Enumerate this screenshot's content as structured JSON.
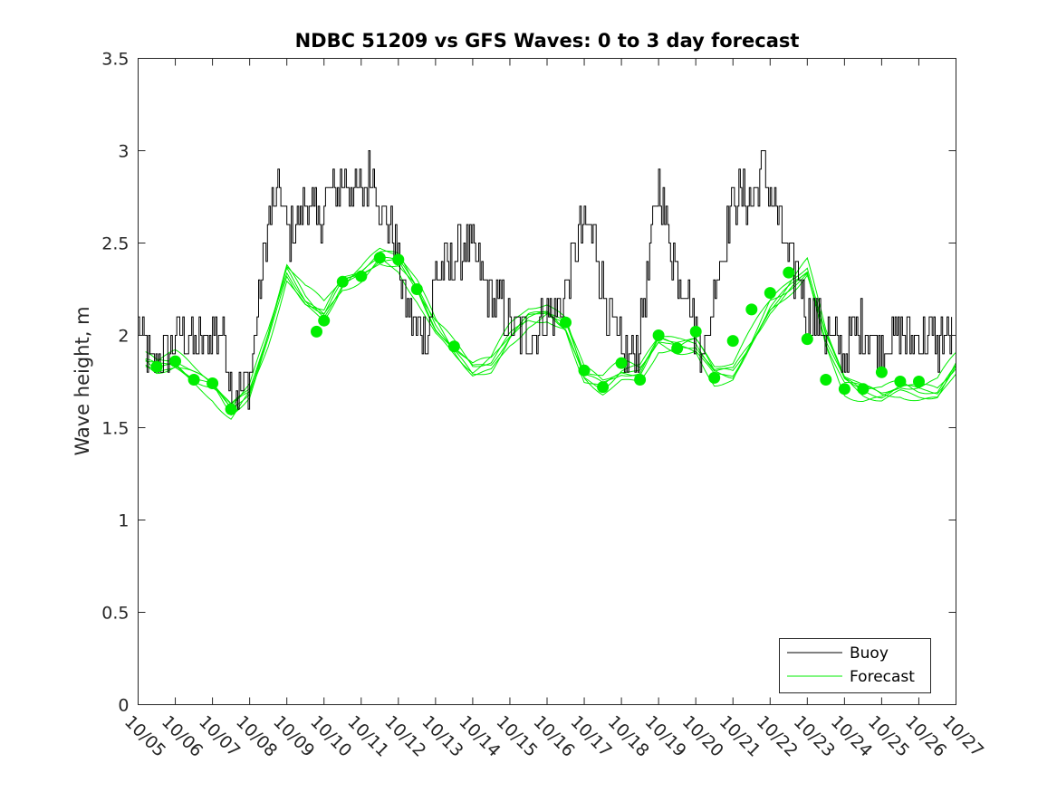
{
  "chart_data": {
    "type": "line",
    "title": "NDBC 51209 vs GFS Waves: 0 to 3 day forecast",
    "ylabel": "Wave height, m",
    "xlabel": "",
    "ylim": [
      0,
      3.5
    ],
    "xlim": [
      0,
      22
    ],
    "yticks": [
      0,
      0.5,
      1,
      1.5,
      2,
      2.5,
      3,
      3.5
    ],
    "ytick_labels": [
      "0",
      "0.5",
      "1",
      "1.5",
      "2",
      "2.5",
      "3",
      "3.5"
    ],
    "xtick_labels": [
      "10/05",
      "10/06",
      "10/07",
      "10/08",
      "10/09",
      "10/10",
      "10/11",
      "10/12",
      "10/13",
      "10/14",
      "10/15",
      "10/16",
      "10/17",
      "10/18",
      "10/19",
      "10/20",
      "10/21",
      "10/22",
      "10/23",
      "10/24",
      "10/25",
      "10/26",
      "10/27"
    ],
    "legend": {
      "placement": "bottom-right",
      "entries": [
        "Buoy",
        "Forecast"
      ]
    },
    "colors": {
      "buoy": "#000000",
      "forecast": "#00ee00"
    },
    "buoy_envelope": {
      "x": [
        0.0,
        0.3,
        0.5,
        0.8,
        1.0,
        1.3,
        1.5,
        1.8,
        2.0,
        2.3,
        2.5,
        2.8,
        3.0,
        3.3,
        3.5,
        3.8,
        4.0,
        4.3,
        4.5,
        4.8,
        5.0,
        5.3,
        5.5,
        5.8,
        6.0,
        6.3,
        6.5,
        6.8,
        7.0,
        7.2,
        7.5,
        7.8,
        8.0,
        8.3,
        8.5,
        8.8,
        9.0,
        9.3,
        9.5,
        9.8,
        10.0,
        10.3,
        10.5,
        10.8,
        11.0,
        11.3,
        11.5,
        11.8,
        12.0,
        12.3,
        12.5,
        12.8,
        13.0,
        13.3,
        13.5,
        13.8,
        14.0,
        14.3,
        14.5,
        14.8,
        15.0,
        15.3,
        15.5,
        15.8,
        16.0,
        16.3,
        16.5,
        16.8,
        17.0,
        17.2,
        17.5,
        17.8,
        18.0,
        18.3,
        18.5,
        18.8,
        19.0,
        19.3,
        19.5,
        19.8,
        20.0,
        20.3,
        20.5,
        20.8,
        21.0,
        21.3,
        21.5,
        21.7,
        21.9
      ],
      "y": [
        2.05,
        1.85,
        1.85,
        1.9,
        2.0,
        2.0,
        1.95,
        1.95,
        2.0,
        2.0,
        1.7,
        1.7,
        1.75,
        2.3,
        2.6,
        2.8,
        2.55,
        2.6,
        2.75,
        2.6,
        2.7,
        2.8,
        2.85,
        2.8,
        2.75,
        2.9,
        2.7,
        2.55,
        2.4,
        2.15,
        2.0,
        2.05,
        2.35,
        2.35,
        2.4,
        2.5,
        2.45,
        2.3,
        2.2,
        2.15,
        2.05,
        2.0,
        2.0,
        2.05,
        2.1,
        2.15,
        2.25,
        2.5,
        2.6,
        2.5,
        2.25,
        2.0,
        1.9,
        1.85,
        2.0,
        2.5,
        2.85,
        2.5,
        2.35,
        2.25,
        2.0,
        1.95,
        2.3,
        2.5,
        2.75,
        2.75,
        2.75,
        2.9,
        2.8,
        2.65,
        2.4,
        2.3,
        2.1,
        2.1,
        2.0,
        1.95,
        1.9,
        2.0,
        2.05,
        1.95,
        1.95,
        2.0,
        2.0,
        1.95,
        2.0,
        2.0,
        1.95,
        2.0,
        1.95
      ],
      "amplitude": 0.14
    },
    "forecast_base": {
      "x": [
        0.0,
        0.5,
        1.0,
        1.5,
        2.0,
        2.5,
        3.0,
        3.5,
        4.0,
        4.5,
        5.0,
        5.5,
        6.0,
        6.5,
        7.0,
        7.5,
        8.0,
        8.5,
        9.0,
        9.5,
        10.0,
        10.5,
        11.0,
        11.5,
        12.0,
        12.5,
        13.0,
        13.5,
        14.0,
        14.5,
        15.0,
        15.5,
        16.0,
        16.5,
        17.0,
        17.5,
        18.0,
        18.5,
        19.0,
        19.5,
        20.0,
        20.5,
        21.0,
        21.5,
        22.0
      ],
      "y": [
        1.88,
        1.83,
        1.85,
        1.78,
        1.72,
        1.6,
        1.7,
        2.0,
        2.35,
        2.2,
        2.12,
        2.28,
        2.33,
        2.42,
        2.4,
        2.25,
        2.05,
        1.93,
        1.82,
        1.85,
        2.0,
        2.1,
        2.12,
        2.05,
        1.78,
        1.73,
        1.8,
        1.8,
        1.97,
        1.95,
        1.95,
        1.8,
        1.8,
        1.97,
        2.15,
        2.25,
        2.35,
        1.98,
        1.75,
        1.7,
        1.68,
        1.72,
        1.7,
        1.7,
        1.84
      ]
    },
    "forecast_markers": {
      "x": [
        0.5,
        1.0,
        1.5,
        2.0,
        2.5,
        4.8,
        5.0,
        5.5,
        6.0,
        6.5,
        7.0,
        7.5,
        8.5,
        11.5,
        12.0,
        12.5,
        13.0,
        13.5,
        14.0,
        14.5,
        15.0,
        15.5,
        16.0,
        16.5,
        17.0,
        17.5,
        18.0,
        18.5,
        19.0,
        19.5,
        20.0,
        20.5,
        21.0
      ],
      "y": [
        1.83,
        1.86,
        1.76,
        1.74,
        1.6,
        2.02,
        2.08,
        2.29,
        2.32,
        2.42,
        2.41,
        2.25,
        1.94,
        2.07,
        1.81,
        1.72,
        1.85,
        1.76,
        2.0,
        1.93,
        2.02,
        1.77,
        1.97,
        2.14,
        2.23,
        2.34,
        1.98,
        1.76,
        1.71,
        1.71,
        1.8,
        1.75,
        1.75
      ]
    }
  }
}
